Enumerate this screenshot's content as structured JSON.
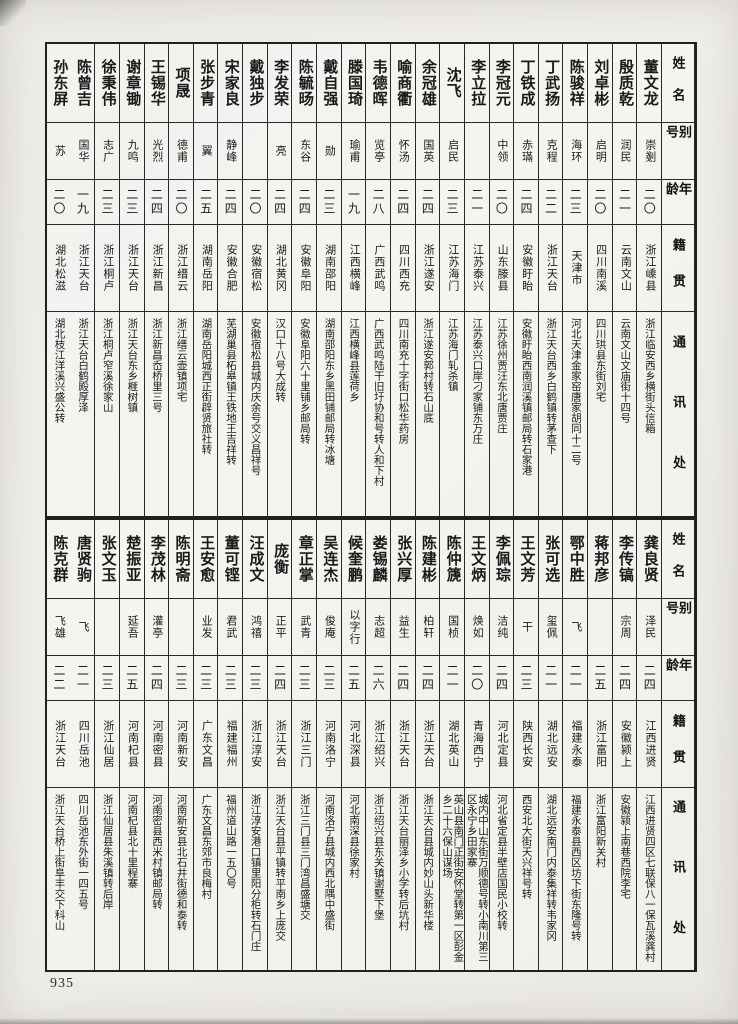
{
  "page": {
    "number": "935"
  },
  "headers": {
    "name": "姓 名",
    "alias": "别 号",
    "age": "年 龄",
    "origin": "籍 贯",
    "address": "通 讯 处"
  },
  "sections": [
    {
      "entries": [
        {
          "name": "董文龙",
          "alias": "崇剗",
          "age": "二〇",
          "origin": "浙江嵊县",
          "address": "浙江临安西乡横街头信箱"
        },
        {
          "name": "殷质乾",
          "alias": "润民",
          "age": "二一",
          "origin": "云南文山",
          "address": "云南文山文庙街十四号"
        },
        {
          "name": "刘卓彬",
          "alias": "启明",
          "age": "二〇",
          "origin": "四川南溪",
          "address": "四川珙县东街刘宅"
        },
        {
          "name": "陈骏祥",
          "alias": "海环",
          "age": "二三",
          "origin": "天津市",
          "address": "河北天津金家窑唐家胡同十二号"
        },
        {
          "name": "丁武扬",
          "alias": "克程",
          "age": "二二",
          "origin": "浙江天台",
          "address": "浙江天台西乡白鹤镇转茅查下"
        },
        {
          "name": "丁铁成",
          "alias": "赤璊",
          "age": "二四",
          "origin": "安徽盱眙",
          "address": "安徽盱眙西南润溪镇邮局转石家港"
        },
        {
          "name": "李冠元",
          "alias": "中领",
          "age": "二〇",
          "origin": "山东滕县",
          "address": "江苏徐州贾汪东北唐贾庄"
        },
        {
          "name": "李立拉",
          "alias": "",
          "age": "二一",
          "origin": "江苏泰兴",
          "address": "江苏泰兴口岸刁家铺东万庄"
        },
        {
          "name": "沈飞",
          "alias": "启民",
          "age": "二三",
          "origin": "江苏海门",
          "address": "江苏海门轧杀镇"
        },
        {
          "name": "余冠雄",
          "alias": "国英",
          "age": "二四",
          "origin": "浙江遂安",
          "address": "浙江遂安郭村转石山底"
        },
        {
          "name": "喻商衢",
          "alias": "怀汤",
          "age": "二四",
          "origin": "四川西充",
          "address": "四川南充十字街口松华药房"
        },
        {
          "name": "韦德晖",
          "alias": "览亭",
          "age": "二八",
          "origin": "广西武鸣",
          "address": "广西武鸣陆干旧圩协和号转人和下村"
        },
        {
          "name": "滕国琦",
          "alias": "瑜甫",
          "age": "一九",
          "origin": "江西横峰",
          "address": "江西横峰县莲荷乡"
        },
        {
          "name": "戴自强",
          "alias": "勋",
          "age": "二三",
          "origin": "湖南邵阳",
          "address": "湖南邵阳东乡黑田铺邮局转冰塘"
        },
        {
          "name": "陈毓旸",
          "alias": "东谷",
          "age": "二四",
          "origin": "安徽阜阳",
          "address": "安徽阜阳六十里铺乡邮局转"
        },
        {
          "name": "李发荣",
          "alias": "亮",
          "age": "二四",
          "origin": "湖北黄冈",
          "address": "汉口十八号大成转"
        },
        {
          "name": "戴独步",
          "alias": "",
          "age": "二〇",
          "origin": "安徽宿松",
          "address": "安徽宿松县城内庆余号交义昌祥号"
        },
        {
          "name": "宋家良",
          "alias": "静峰",
          "age": "二四",
          "origin": "安徽合肥",
          "address": "芜湖巢县柘皋镇王铁地王吉祥转"
        },
        {
          "name": "张步青",
          "alias": "翼",
          "age": "二五",
          "origin": "湖南岳阳",
          "address": "湖南岳阳城西正街辟贤旅社转"
        },
        {
          "name": "项晟",
          "alias": "德甫",
          "age": "二〇",
          "origin": "浙江缙云",
          "address": "浙江缙云壶镇项宅"
        },
        {
          "name": "王锡华",
          "alias": "光烈",
          "age": "二四",
          "origin": "浙江新昌",
          "address": "浙江新昌岙桥里三号"
        },
        {
          "name": "谢章锄",
          "alias": "九鸣",
          "age": "二三",
          "origin": "浙江天台",
          "address": "浙江天台东乡榧树镇"
        },
        {
          "name": "徐秉伟",
          "alias": "志广",
          "age": "二三",
          "origin": "浙江桐卢",
          "address": "浙江桐卢窄溪徐家山"
        },
        {
          "name": "陈曾吉",
          "alias": "国华",
          "age": "一九",
          "origin": "浙江天台",
          "address": "浙江天台白鹤殿厚泽"
        },
        {
          "name": "孙东屏",
          "alias": "苏",
          "age": "二〇",
          "origin": "湖北松滋",
          "address": "湖北枝江洋溪兴盛公转"
        }
      ]
    },
    {
      "entries": [
        {
          "name": "龚良贤",
          "alias": "泽民",
          "age": "二四",
          "origin": "江西进贤",
          "address": "江西进贤四区七联保八一保瓦溪龚村"
        },
        {
          "name": "李传镐",
          "alias": "宗周",
          "age": "二四",
          "origin": "安徽颍上",
          "address": "安徽颍上南巷西院李宅"
        },
        {
          "name": "蒋邦彦",
          "alias": "",
          "age": "二五",
          "origin": "浙江富阳",
          "address": "浙江富阳新关村"
        },
        {
          "name": "鄂中胜",
          "alias": "飞",
          "age": "二一",
          "origin": "福建永泰",
          "address": "福建永泰县西区坊下街东隆号转"
        },
        {
          "name": "张可选",
          "alias": "玺佩",
          "age": "二一",
          "origin": "湖北远安",
          "address": "湖北远安南门内泰集祥转韦家冈"
        },
        {
          "name": "王文芳",
          "alias": "干",
          "age": "二三",
          "origin": "陕西长安",
          "address": "西安北大街天兴祥号转"
        },
        {
          "name": "李佩琮",
          "alias": "洁纯",
          "age": "二四",
          "origin": "河北定县",
          "address": "河北省定县半壁店国民小校转"
        },
        {
          "name": "王文炳",
          "alias": "焕如",
          "age": "二〇",
          "origin": "青海西宁",
          "address": "城内中山东街万顺德号转小南川第三区永宁乡田家寨"
        },
        {
          "name": "陈仲篪",
          "alias": "国桢",
          "age": "二一",
          "origin": "湖北英山",
          "address": "英山县南门正街安怀堂转第一区彭金乡二十六保山谋场"
        },
        {
          "name": "陈建彬",
          "alias": "柏轩",
          "age": "二四",
          "origin": "浙江天台",
          "address": "浙江天台县城内妙山头新华楼"
        },
        {
          "name": "张兴厚",
          "alias": "益生",
          "age": "二四",
          "origin": "浙江天台",
          "address": "浙江天台丽泽乡小学转后坑村"
        },
        {
          "name": "娄锡麟",
          "alias": "志超",
          "age": "二六",
          "origin": "浙江绍兴",
          "address": "浙江绍兴县东关镇谢墅下堡"
        },
        {
          "name": "候奎鹏",
          "alias": "以字行",
          "age": "二五",
          "origin": "河北深县",
          "address": "河北南深县徐家村"
        },
        {
          "name": "吴连杰",
          "alias": "俊庵",
          "age": "二三",
          "origin": "河南洛宁",
          "address": "河南洛宁县城内西北隅中盛街"
        },
        {
          "name": "章正掌",
          "alias": "武青",
          "age": "二三",
          "origin": "浙江三门",
          "address": "浙江三门县三门湾昌盛塘交"
        },
        {
          "name": "庞衡",
          "alias": "正平",
          "age": "二四",
          "origin": "浙江天台",
          "address": "浙江天台县平镇转平南乡上庞交"
        },
        {
          "name": "汪成文",
          "alias": "鸿禧",
          "age": "二三",
          "origin": "浙江淳安",
          "address": "浙江淳安港口镇里阳分柜转石门庄"
        },
        {
          "name": "董可铿",
          "alias": "君武",
          "age": "二三",
          "origin": "福建福州",
          "address": "福州道山路一五〇号"
        },
        {
          "name": "王安愈",
          "alias": "业发",
          "age": "二三",
          "origin": "广东文昌",
          "address": "广东文昌东郊市良梅村"
        },
        {
          "name": "陈明斋",
          "alias": "",
          "age": "二三",
          "origin": "河南新安",
          "address": "河南新安县北石井街德和泰转"
        },
        {
          "name": "李茂林",
          "alias": "灌亭",
          "age": "二四",
          "origin": "河南密县",
          "address": "河南密县西米村镇邮局转"
        },
        {
          "name": "楚振亚",
          "alias": "延吾",
          "age": "二五",
          "origin": "河南杞县",
          "address": "河南杞县北十里程寨"
        },
        {
          "name": "张文玉",
          "alias": "",
          "age": "二三",
          "origin": "浙江仙居",
          "address": "浙江仙居县朱溪镇转后岸"
        },
        {
          "name": "唐贤驹",
          "alias": "飞",
          "age": "二一",
          "origin": "四川岳池",
          "address": "四川岳池东外街一四五号"
        },
        {
          "name": "陈克群",
          "alias": "飞雄",
          "age": "二二",
          "origin": "浙江天台",
          "address": "浙江天台桥上街阜丰交下科山"
        }
      ]
    }
  ]
}
